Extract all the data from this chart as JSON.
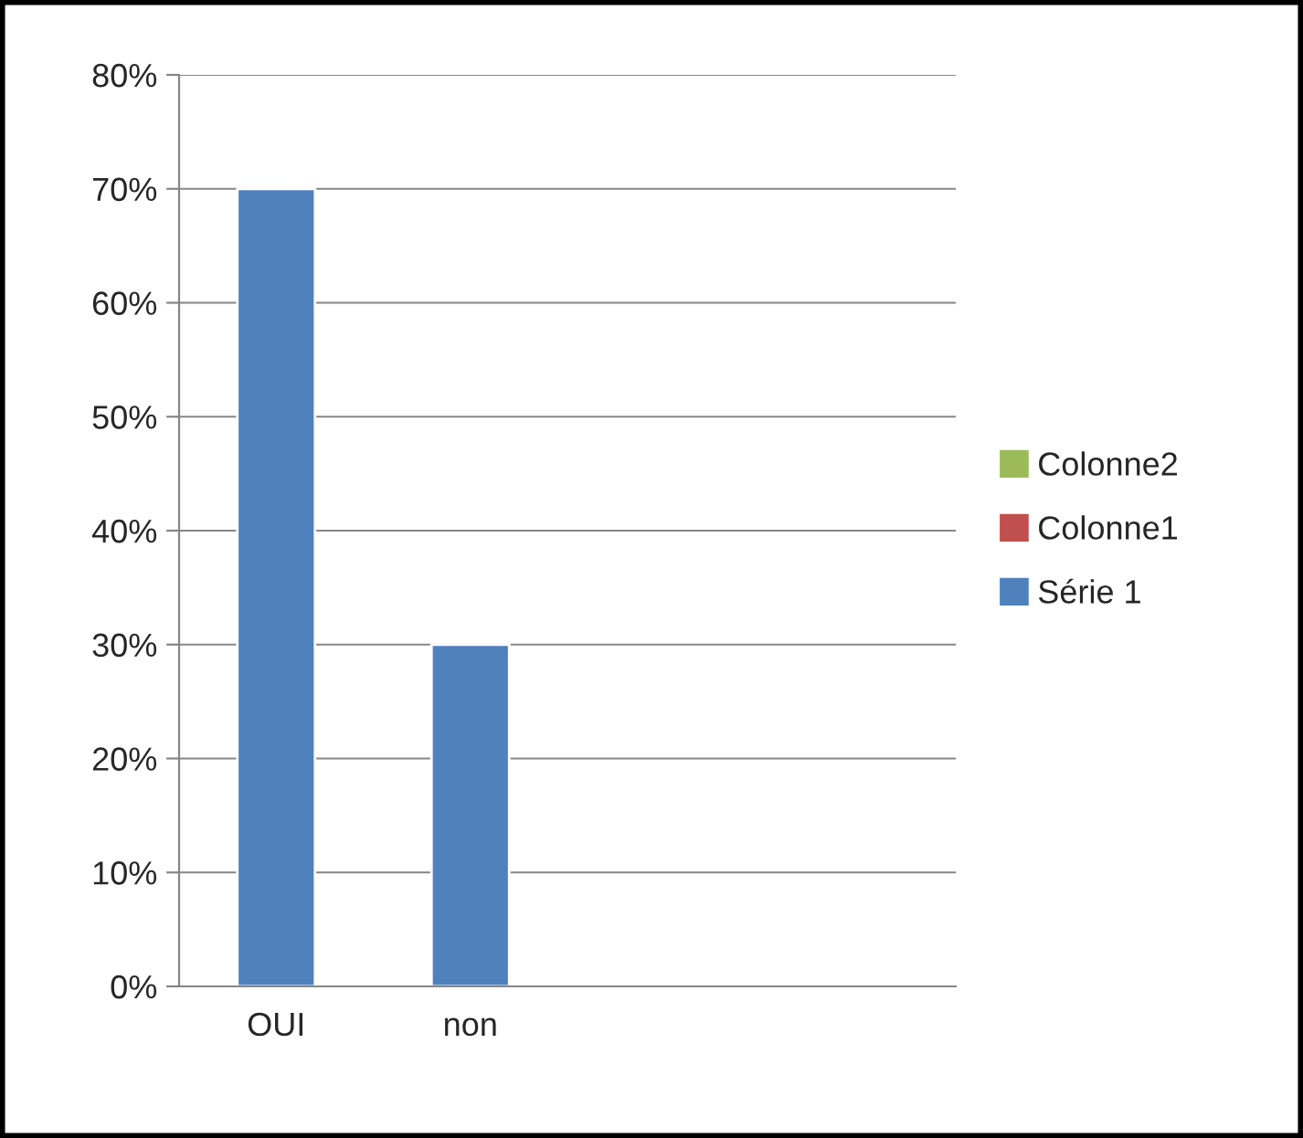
{
  "chart_data": {
    "type": "bar",
    "categories": [
      "OUI",
      "non",
      null,
      null
    ],
    "series": [
      {
        "name": "Série 1",
        "color": "#4f81bd",
        "values": [
          70,
          30,
          null,
          null
        ]
      },
      {
        "name": "Colonne1",
        "color": "#c0504d",
        "values": [
          null,
          null,
          null,
          null
        ]
      },
      {
        "name": "Colonne2",
        "color": "#9bbb59",
        "values": [
          null,
          null,
          null,
          null
        ]
      }
    ],
    "ylim": [
      0,
      80
    ],
    "yticks": [
      {
        "value": 0,
        "label": "0%"
      },
      {
        "value": 10,
        "label": "10%"
      },
      {
        "value": 20,
        "label": "20%"
      },
      {
        "value": 30,
        "label": "30%"
      },
      {
        "value": 40,
        "label": "40%"
      },
      {
        "value": 50,
        "label": "50%"
      },
      {
        "value": 60,
        "label": "60%"
      },
      {
        "value": 70,
        "label": "70%"
      },
      {
        "value": 80,
        "label": "80%"
      }
    ],
    "grid": "y",
    "legend": "right"
  }
}
